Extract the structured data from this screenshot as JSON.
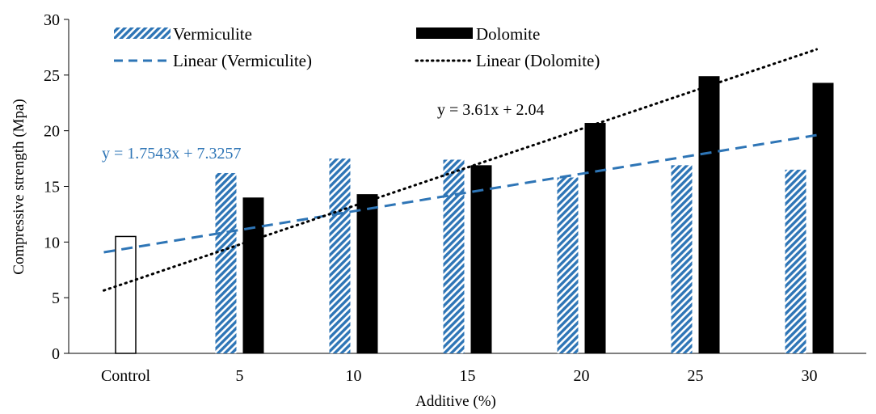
{
  "chart_data": {
    "type": "bar",
    "categories": [
      "Control",
      "5",
      "10",
      "15",
      "20",
      "25",
      "30"
    ],
    "series": [
      {
        "name": "Vermiculite",
        "values": [
          null,
          16.2,
          17.5,
          17.4,
          15.8,
          16.9,
          16.5
        ],
        "color": "#2e75b6",
        "pattern": "diagonal-hatch"
      },
      {
        "name": "Dolomite",
        "values": [
          null,
          14.0,
          14.3,
          16.9,
          20.7,
          24.9,
          24.3
        ],
        "color": "#000000",
        "pattern": "solid"
      }
    ],
    "control": {
      "category": "Control",
      "value": 10.5,
      "fill": "#ffffff",
      "stroke": "#000000"
    },
    "trendlines": [
      {
        "name": "Linear (Vermiculite)",
        "slope": 1.7543,
        "intercept": 7.3257,
        "style": "dashed",
        "color": "#2e75b6",
        "equation": "y = 1.7543x + 7.3257"
      },
      {
        "name": "Linear (Dolomite)",
        "slope": 3.61,
        "intercept": 2.04,
        "style": "dotted",
        "color": "#000000",
        "equation": "y = 3.61x + 2.04"
      }
    ],
    "xlabel": "Additive (%)",
    "ylabel": "Compressive strength (Mpa)",
    "ylim": [
      0,
      30
    ],
    "yticks": [
      0,
      5,
      10,
      15,
      20,
      25,
      30
    ],
    "grid": false,
    "legend_position": "top"
  }
}
